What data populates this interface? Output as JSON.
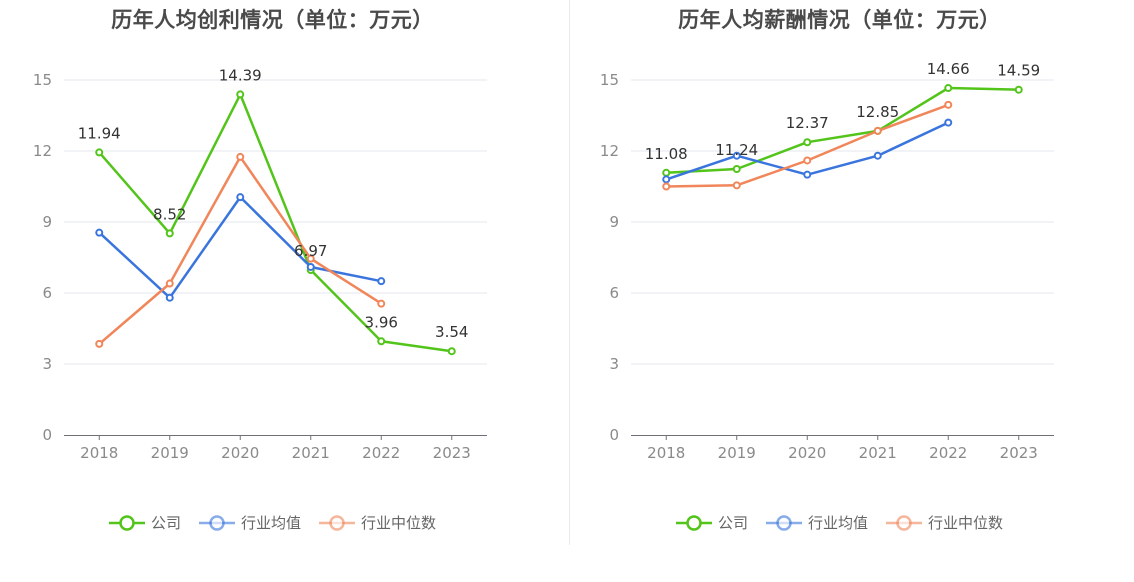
{
  "legend": {
    "items": [
      {
        "name": "公司",
        "color": "#52c41a"
      },
      {
        "name": "行业均值",
        "color": "#3a75dd"
      },
      {
        "name": "行业中位数",
        "color": "#f08659"
      }
    ]
  },
  "chart_data": [
    {
      "type": "line",
      "title": "历年人均创利情况（单位：万元）",
      "x": [
        "2018",
        "2019",
        "2020",
        "2021",
        "2022",
        "2023"
      ],
      "ylim": [
        0,
        15
      ],
      "yticks": [
        0,
        3,
        6,
        9,
        12,
        15
      ],
      "grid": true,
      "legend_position": "bottom",
      "series": [
        {
          "name": "公司",
          "color": "#52c41a",
          "values": [
            11.94,
            8.52,
            14.39,
            6.97,
            3.96,
            3.54
          ],
          "labels": [
            "11.94",
            "8.52",
            "14.39",
            "6.97",
            "3.96",
            "3.54"
          ]
        },
        {
          "name": "行业均值",
          "color": "#3a75dd",
          "values": [
            8.55,
            5.8,
            10.05,
            7.1,
            6.5,
            null
          ]
        },
        {
          "name": "行业中位数",
          "color": "#f08659",
          "values": [
            3.85,
            6.4,
            11.75,
            7.45,
            5.55,
            null
          ]
        }
      ]
    },
    {
      "type": "line",
      "title": "历年人均薪酬情况（单位：万元）",
      "x": [
        "2018",
        "2019",
        "2020",
        "2021",
        "2022",
        "2023"
      ],
      "ylim": [
        0,
        15
      ],
      "yticks": [
        0,
        3,
        6,
        9,
        12,
        15
      ],
      "grid": true,
      "legend_position": "bottom",
      "series": [
        {
          "name": "公司",
          "color": "#52c41a",
          "values": [
            11.08,
            11.24,
            12.37,
            12.85,
            14.66,
            14.59
          ],
          "labels": [
            "11.08",
            "11.24",
            "12.37",
            "12.85",
            "14.66",
            "14.59"
          ]
        },
        {
          "name": "行业均值",
          "color": "#3a75dd",
          "values": [
            10.8,
            11.8,
            11.0,
            11.8,
            13.2,
            null
          ]
        },
        {
          "name": "行业中位数",
          "color": "#f08659",
          "values": [
            10.5,
            10.55,
            11.6,
            12.85,
            13.95,
            null
          ]
        }
      ]
    }
  ]
}
